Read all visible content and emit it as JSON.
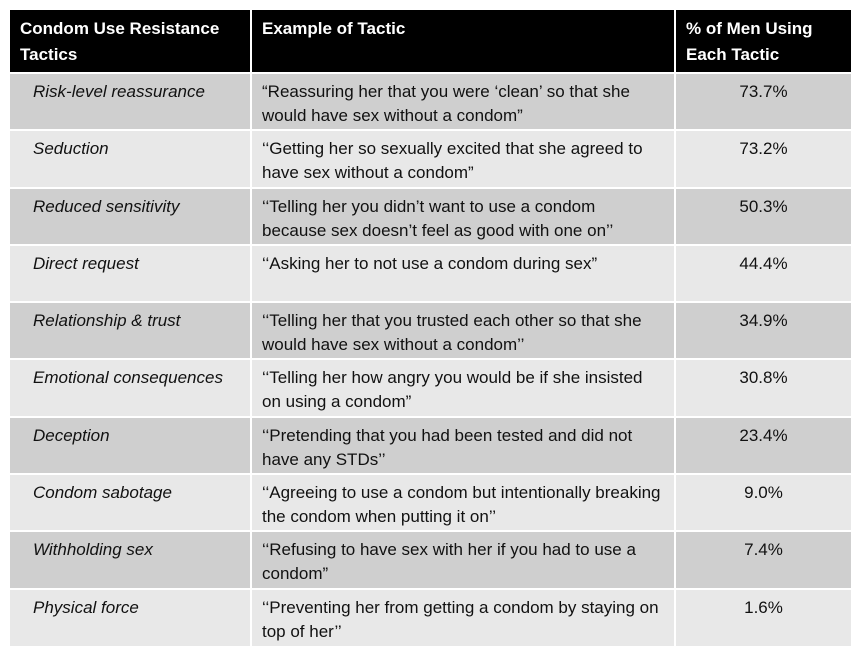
{
  "table": {
    "headers": {
      "tactic": "Condom Use Resistance Tactics",
      "example": "Example of Tactic",
      "percent": "% of Men Using Each Tactic"
    },
    "rows": [
      {
        "tactic": "Risk-level reassurance",
        "example": "“Reassuring her that you were ‘clean’ so that she would have sex without a condom”",
        "percent": "73.7%"
      },
      {
        "tactic": "Seduction",
        "example": "‘‘Getting her so sexually excited that she agreed to have sex without a condom”",
        "percent": "73.2%"
      },
      {
        "tactic": "Reduced sensitivity",
        "example": "‘‘Telling her you didn’t want to use a condom because sex doesn’t feel as good with one on’’",
        "percent": "50.3%"
      },
      {
        "tactic": "Direct request",
        "example": "‘‘Asking her to not use a condom during sex”",
        "percent": "44.4%"
      },
      {
        "tactic": "Relationship & trust",
        "example": "‘‘Telling her that you trusted each other so that she would have sex without a condom’’",
        "percent": "34.9%"
      },
      {
        "tactic": "Emotional consequences",
        "example": "‘‘Telling her how angry you would be if she insisted on using a condom”",
        "percent": "30.8%"
      },
      {
        "tactic": "Deception",
        "example": "‘‘Pretending that you had been tested and did not have any STDs’’",
        "percent": "23.4%"
      },
      {
        "tactic": "Condom sabotage",
        "example": "‘‘Agreeing to use a condom but intentionally breaking the condom when putting it on’’",
        "percent": "9.0%"
      },
      {
        "tactic": "Withholding sex",
        "example": "‘‘Refusing to have sex with her if you had to use a condom”",
        "percent": "7.4%"
      },
      {
        "tactic": "Physical force",
        "example": "‘‘Preventing her from getting a condom by staying on top of her’’",
        "percent": "1.6%"
      }
    ]
  }
}
